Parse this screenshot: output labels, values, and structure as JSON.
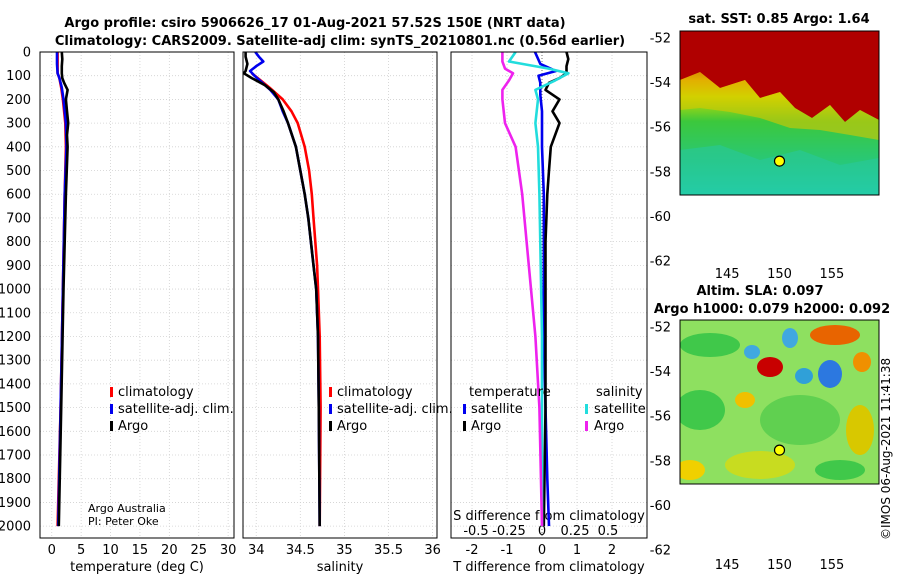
{
  "title_line1": "Argo profile: csiro 5906626_17 01-Aug-2021 57.52S 150E (NRT data)",
  "title_line2": "Climatology: CARS2009. Satellite-adj clim: synTS_20210801.nc (0.56d earlier)",
  "credit_line1": "Argo Australia",
  "credit_line2": "PI: Peter Oke",
  "watermark": "©IMOS 06-Aug-2021 11:41:38",
  "colors": {
    "climatology": "#ff0000",
    "satellite": "#0000ee",
    "argo": "#000000",
    "sat_salinity": "#22dddd",
    "argo_salinity": "#ee22ee"
  },
  "depth_ticks": [
    "0",
    "100",
    "200",
    "300",
    "400",
    "500",
    "600",
    "700",
    "800",
    "900",
    "1000",
    "1100",
    "1200",
    "1300",
    "1400",
    "1500",
    "1600",
    "1700",
    "1800",
    "1900",
    "2000"
  ],
  "legend": {
    "climatology": "climatology",
    "satellite": "satellite-adj. clim.",
    "argo": "Argo"
  },
  "diff_legend": {
    "temp_title": "temperature",
    "sal_title": "salinity",
    "satellite": "satellite",
    "argo": "Argo"
  },
  "chart_data": [
    {
      "type": "line",
      "name": "temperature-profile",
      "xlabel": "temperature (deg C)",
      "xlim": [
        -2,
        31
      ],
      "ylim": [
        2050,
        0
      ],
      "xticks": [
        0,
        5,
        10,
        15,
        20,
        25,
        30
      ],
      "series": [
        {
          "name": "climatology",
          "depth": [
            0,
            50,
            90,
            110,
            150,
            200,
            300,
            400,
            600,
            1000,
            1500,
            2000
          ],
          "values": [
            1.0,
            1.0,
            1.0,
            1.3,
            1.6,
            1.9,
            2.3,
            2.4,
            2.2,
            1.9,
            1.5,
            1.0
          ]
        },
        {
          "name": "satellite-adj. clim.",
          "depth": [
            0,
            50,
            90,
            110,
            150,
            200,
            300,
            400,
            600,
            1000,
            1500,
            2000
          ],
          "values": [
            0.9,
            0.9,
            1.0,
            1.3,
            1.7,
            2.0,
            2.4,
            2.5,
            2.2,
            1.9,
            1.5,
            1.1
          ]
        },
        {
          "name": "Argo",
          "depth": [
            0,
            30,
            60,
            90,
            110,
            130,
            160,
            200,
            250,
            300,
            350,
            400,
            600,
            1000,
            1500,
            2000
          ],
          "values": [
            1.7,
            1.8,
            1.7,
            1.7,
            1.8,
            2.1,
            2.7,
            2.4,
            2.6,
            2.8,
            2.6,
            2.7,
            2.4,
            2.0,
            1.6,
            1.2
          ]
        }
      ]
    },
    {
      "type": "line",
      "name": "salinity-profile",
      "xlabel": "salinity",
      "xlim": [
        33.85,
        36.05
      ],
      "ylim": [
        2050,
        0
      ],
      "xticks": [
        34,
        34.5,
        35,
        35.5,
        36
      ],
      "xticklabels": [
        "34",
        "34.5",
        "35",
        "35.5",
        "36"
      ],
      "series": [
        {
          "name": "climatology",
          "depth": [
            90,
            120,
            150,
            200,
            250,
            300,
            400,
            500,
            600,
            700,
            800,
            900,
            1000,
            1200,
            1500,
            2000
          ],
          "values": [
            33.95,
            34.05,
            34.15,
            34.3,
            34.4,
            34.47,
            34.55,
            34.6,
            34.63,
            34.65,
            34.67,
            34.69,
            34.7,
            34.72,
            34.73,
            34.72
          ]
        },
        {
          "name": "satellite-adj. clim.",
          "depth": [
            0,
            20,
            40,
            60,
            80,
            100,
            130,
            160,
            200,
            250,
            300,
            400,
            500,
            600,
            700,
            800,
            900,
            1000,
            1200,
            1500,
            2000
          ],
          "values": [
            33.99,
            34.03,
            34.08,
            34.0,
            33.93,
            33.98,
            34.07,
            34.16,
            34.25,
            34.3,
            34.36,
            34.45,
            34.5,
            34.55,
            34.59,
            34.62,
            34.65,
            34.68,
            34.7,
            34.71,
            34.72
          ]
        },
        {
          "name": "Argo",
          "depth": [
            0,
            20,
            50,
            80,
            90,
            110,
            140,
            170,
            200,
            250,
            300,
            400,
            500,
            600,
            700,
            800,
            900,
            1000,
            1200,
            1500,
            2000
          ],
          "values": [
            33.88,
            33.88,
            33.9,
            33.88,
            33.86,
            33.95,
            34.1,
            34.2,
            34.25,
            34.31,
            34.36,
            34.45,
            34.5,
            34.55,
            34.59,
            34.62,
            34.65,
            34.68,
            34.7,
            34.71,
            34.72
          ]
        }
      ]
    },
    {
      "type": "line",
      "name": "difference-profile",
      "xlabel": "T difference from climatology",
      "xlabel_top": "S difference from climatology",
      "xlim": [
        -2.6,
        3.0
      ],
      "ylim": [
        2050,
        0
      ],
      "xticks": [
        -2,
        -1,
        0,
        1,
        2
      ],
      "xticklabels": [
        "-2",
        "-1",
        "0",
        "1",
        "2"
      ],
      "sticks": [
        -0.5,
        -0.25,
        0,
        0.25,
        0.5
      ],
      "sticklabels": [
        "-0.5",
        "-0.25",
        "0",
        "0.25",
        "0.5"
      ],
      "series": [
        {
          "name": "T satellite",
          "depth": [
            0,
            50,
            80,
            100,
            130,
            180,
            250,
            400,
            600,
            900,
            1200,
            1500,
            1800,
            2000
          ],
          "values": [
            -0.2,
            -0.05,
            0.4,
            -0.1,
            -0.05,
            -0.05,
            0.0,
            0.0,
            0.05,
            0.05,
            0.05,
            0.1,
            0.15,
            0.2
          ]
        },
        {
          "name": "T Argo",
          "depth": [
            0,
            30,
            60,
            90,
            110,
            130,
            160,
            200,
            250,
            300,
            400,
            500,
            600,
            800,
            1000,
            1500,
            2000
          ],
          "values": [
            0.7,
            0.75,
            0.7,
            0.7,
            0.5,
            0.2,
            0.1,
            0.5,
            0.3,
            0.5,
            0.25,
            0.2,
            0.15,
            0.1,
            0.1,
            0.1,
            0.05
          ]
        },
        {
          "name": "S satellite",
          "depth": [
            0,
            40,
            70,
            90,
            120,
            160,
            200,
            300,
            400,
            600,
            900,
            1200,
            1500,
            2000
          ],
          "values": [
            -0.2,
            -0.25,
            0.05,
            0.2,
            0.1,
            -0.05,
            -0.03,
            -0.05,
            -0.03,
            -0.02,
            -0.01,
            0.0,
            0.0,
            0.0
          ]
        },
        {
          "name": "S Argo",
          "depth": [
            0,
            40,
            70,
            90,
            120,
            160,
            200,
            300,
            400,
            600,
            900,
            1200,
            1500,
            2000
          ],
          "values": [
            -0.3,
            -0.3,
            -0.28,
            -0.22,
            -0.25,
            -0.3,
            -0.3,
            -0.28,
            -0.2,
            -0.15,
            -0.1,
            -0.05,
            -0.02,
            0.0
          ]
        }
      ]
    },
    {
      "type": "heatmap",
      "name": "sst-map",
      "title": "sat. SST: 0.85 Argo: 1.64",
      "xticks": [
        145,
        150,
        155
      ],
      "yticks": [
        -52,
        -54,
        -56,
        -58,
        -60,
        -62
      ],
      "xlim": [
        140.5,
        159.5
      ],
      "ylim": [
        -63.5,
        -51.5
      ],
      "float_position": [
        150,
        -57.52
      ]
    },
    {
      "type": "heatmap",
      "name": "sla-map",
      "title_line1": "Altim. SLA: 0.097",
      "title_line2": "Argo h1000: 0.079 h2000: 0.092",
      "xticks": [
        145,
        150,
        155
      ],
      "yticks": [
        -52,
        -54,
        -56,
        -58,
        -60,
        -62
      ],
      "xlim": [
        140.5,
        159.5
      ],
      "ylim": [
        -63.5,
        -51.5
      ],
      "float_position": [
        150,
        -57.52
      ]
    }
  ]
}
